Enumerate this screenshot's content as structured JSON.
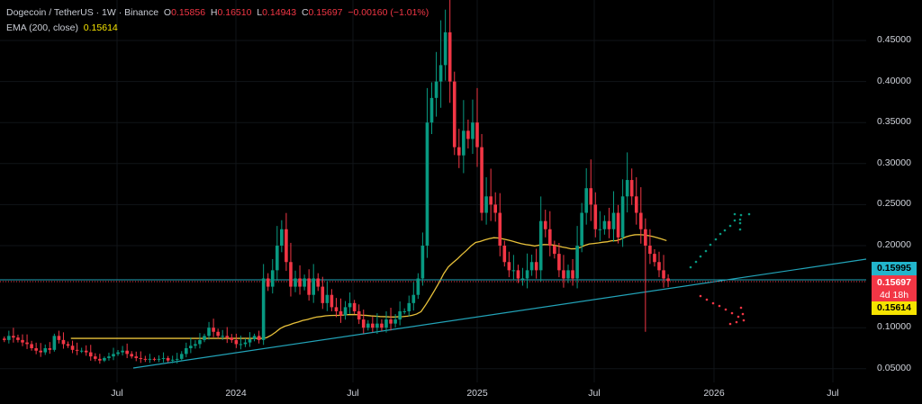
{
  "header": {
    "symbol": "Dogecoin / TetherUS · 1W · Binance",
    "open_label": "O",
    "open": "0.15856",
    "high_label": "H",
    "high": "0.16510",
    "low_label": "L",
    "low": "0.14943",
    "close_label": "C",
    "close": "0.15697",
    "change": "−0.00160 (−1.01%)",
    "ema_label": "EMA (200, close)",
    "ema_value": "0.15614"
  },
  "price_tags": {
    "trendline": "0.15995",
    "last_price": "0.15697",
    "countdown": "4d 18h",
    "ema": "0.15614"
  },
  "colors": {
    "up": "#089981",
    "down": "#f23645",
    "ema": "#e8c13a",
    "trend": "#22a3b8",
    "cyan_tag": "#22b5cc",
    "yellow_tag": "#f5e300"
  },
  "y_axis": [
    "0.45000",
    "0.40000",
    "0.35000",
    "0.30000",
    "0.25000",
    "0.20000",
    "0.10000",
    "0.05000"
  ],
  "x_axis": [
    "Jul",
    "2024",
    "Jul",
    "2025",
    "Jul",
    "2026",
    "Jul"
  ],
  "chart_data": {
    "type": "candlestick",
    "interval": "1W",
    "ylim": [
      0.03,
      0.48
    ],
    "closes": [
      0.085,
      0.09,
      0.088,
      0.085,
      0.082,
      0.08,
      0.075,
      0.072,
      0.07,
      0.075,
      0.073,
      0.09,
      0.085,
      0.08,
      0.078,
      0.073,
      0.072,
      0.072,
      0.07,
      0.065,
      0.062,
      0.06,
      0.063,
      0.065,
      0.068,
      0.07,
      0.072,
      0.068,
      0.065,
      0.063,
      0.062,
      0.061,
      0.062,
      0.061,
      0.062,
      0.063,
      0.06,
      0.061,
      0.062,
      0.068,
      0.075,
      0.078,
      0.08,
      0.085,
      0.09,
      0.1,
      0.095,
      0.09,
      0.09,
      0.088,
      0.085,
      0.08,
      0.08,
      0.082,
      0.086,
      0.09,
      0.085,
      0.16,
      0.15,
      0.17,
      0.2,
      0.22,
      0.18,
      0.15,
      0.16,
      0.15,
      0.16,
      0.14,
      0.16,
      0.15,
      0.13,
      0.14,
      0.125,
      0.12,
      0.115,
      0.125,
      0.13,
      0.12,
      0.11,
      0.1,
      0.105,
      0.1,
      0.105,
      0.1,
      0.11,
      0.105,
      0.11,
      0.12,
      0.12,
      0.13,
      0.14,
      0.16,
      0.2,
      0.35,
      0.38,
      0.4,
      0.42,
      0.46,
      0.4,
      0.32,
      0.31,
      0.34,
      0.33,
      0.35,
      0.32,
      0.24,
      0.26,
      0.25,
      0.24,
      0.2,
      0.18,
      0.17,
      0.17,
      0.16,
      0.16,
      0.17,
      0.18,
      0.17,
      0.23,
      0.22,
      0.2,
      0.19,
      0.17,
      0.16,
      0.17,
      0.16,
      0.2,
      0.24,
      0.27,
      0.25,
      0.22,
      0.22,
      0.23,
      0.22,
      0.24,
      0.21,
      0.26,
      0.28,
      0.26,
      0.24,
      0.22,
      0.2,
      0.19,
      0.18,
      0.17,
      0.16,
      0.15697
    ]
  }
}
